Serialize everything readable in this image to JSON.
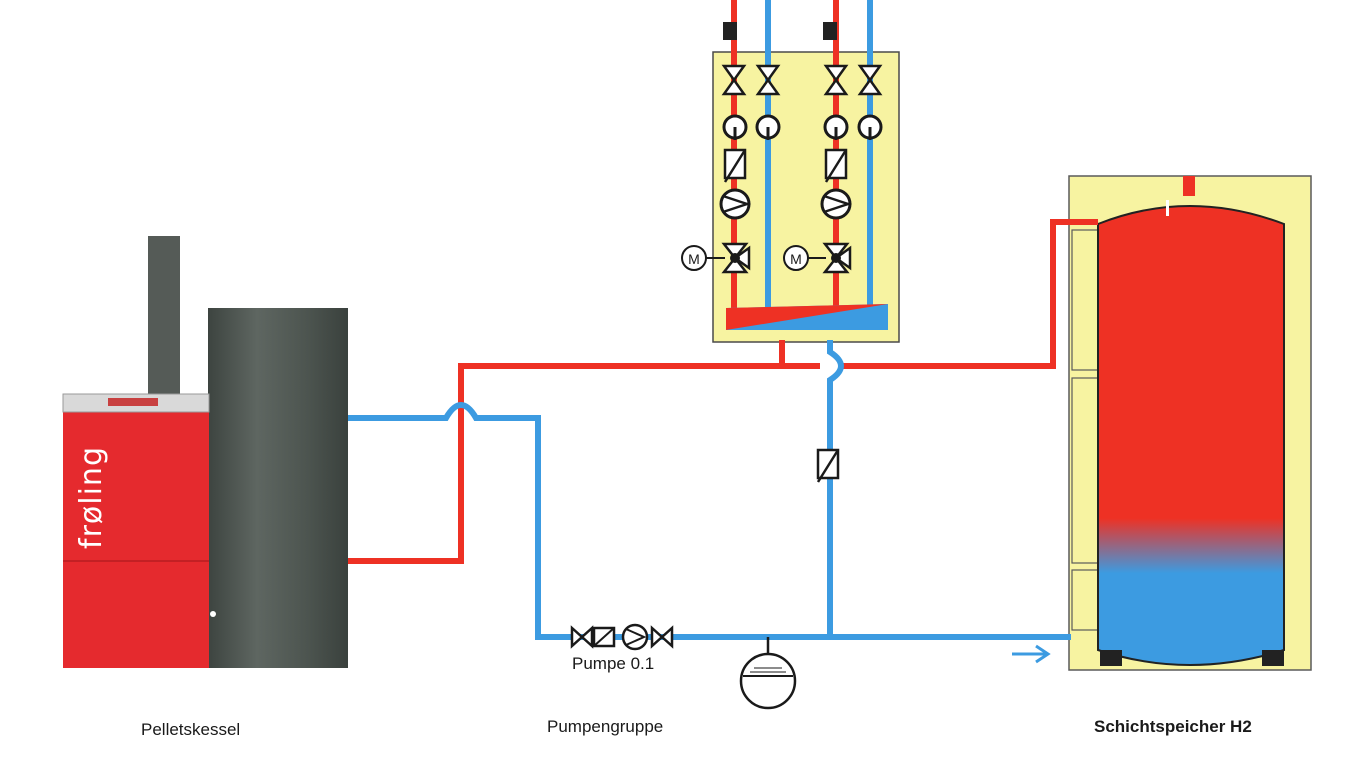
{
  "labels": {
    "boiler": "Pelletskessel",
    "pump_group": "Pumpengruppe",
    "storage": "Schichtspeicher H2",
    "pump": "Pumpe 0.1",
    "brand": "frøling",
    "motor_1": "M",
    "motor_2": "M"
  },
  "colors": {
    "hot": "#ee3124",
    "cold": "#3c9be1",
    "insulation": "#f7f3a1",
    "boiler_body": "#e52a2e",
    "boiler_casing": "#4a524d",
    "chimney": "#555b57"
  }
}
